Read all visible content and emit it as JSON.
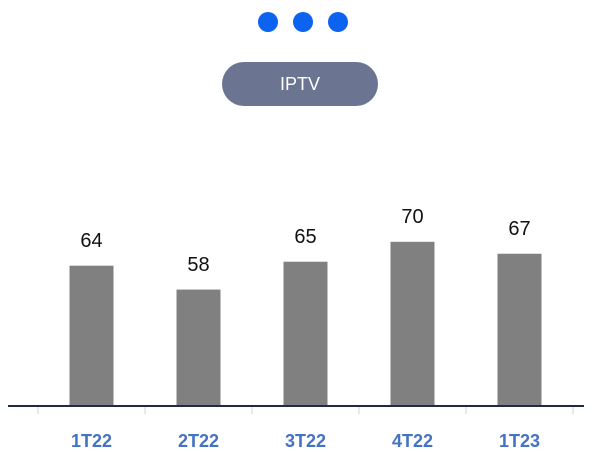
{
  "chart_data": {
    "type": "bar",
    "title": "IPTV",
    "categories": [
      "1T22",
      "2T22",
      "3T22",
      "4T22",
      "1T23"
    ],
    "values": [
      64,
      58,
      65,
      70,
      67
    ],
    "color": "#808080",
    "ylim": [
      29,
      80
    ],
    "grid": false
  }
}
